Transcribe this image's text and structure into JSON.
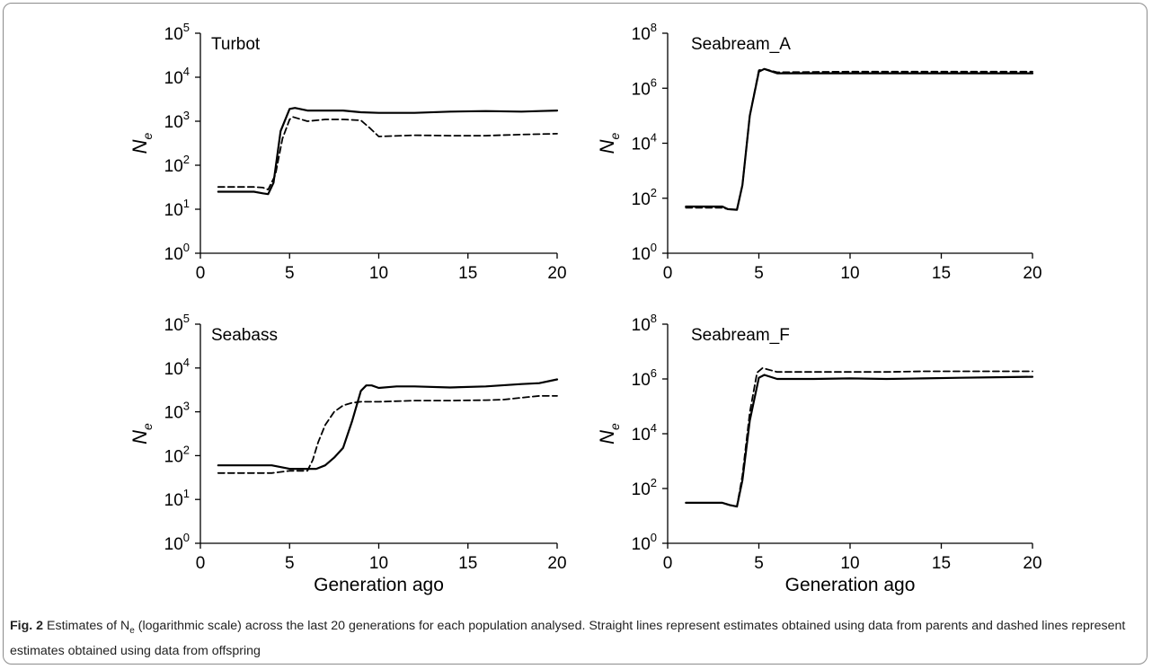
{
  "caption": {
    "label": "Fig. 2",
    "text_before": "Estimates of N",
    "text_sub": "e",
    "text_after": " (logarithmic scale) across the last 20 generations for each population analysed. Straight lines represent estimates obtained using data from parents and dashed lines represent estimates obtained using data from offspring"
  },
  "chart_data": [
    {
      "type": "line",
      "title": "Turbot",
      "xlabel": "",
      "ylabel": "Ne",
      "xlim": [
        0,
        20
      ],
      "xticks": [
        0,
        5,
        10,
        15,
        20
      ],
      "ylim": [
        1,
        100000
      ],
      "yscale": "log",
      "yticks_exponents": [
        0,
        1,
        2,
        3,
        4,
        5
      ],
      "grid": false,
      "series": [
        {
          "label": "parents",
          "style": "solid",
          "color": "#000000",
          "x": [
            1,
            2,
            3,
            3.5,
            3.8,
            4.1,
            4.5,
            5,
            5.3,
            6,
            7,
            8,
            9,
            10,
            12,
            14,
            16,
            18,
            19,
            20
          ],
          "y": [
            25,
            25,
            25,
            23,
            22,
            40,
            600,
            1900,
            2000,
            1750,
            1750,
            1750,
            1600,
            1550,
            1550,
            1650,
            1700,
            1650,
            1700,
            1750
          ]
        },
        {
          "label": "offspring",
          "style": "dashed",
          "color": "#000000",
          "x": [
            1,
            2,
            3,
            3.5,
            3.8,
            4.2,
            4.6,
            5,
            5.2,
            6,
            7,
            8,
            9,
            9.5,
            10,
            12,
            14,
            16,
            18,
            20
          ],
          "y": [
            32,
            32,
            32,
            31,
            28,
            60,
            400,
            1100,
            1250,
            1000,
            1100,
            1100,
            1050,
            700,
            450,
            480,
            470,
            470,
            500,
            520
          ]
        }
      ]
    },
    {
      "type": "line",
      "title": "Seabream_A",
      "xlabel": "",
      "ylabel": "Ne",
      "xlim": [
        0,
        20
      ],
      "xticks": [
        0,
        5,
        10,
        15,
        20
      ],
      "ylim": [
        1,
        100000000
      ],
      "yscale": "log",
      "yticks_exponents": [
        0,
        2,
        4,
        6,
        8
      ],
      "grid": false,
      "series": [
        {
          "label": "parents",
          "style": "solid",
          "color": "#000000",
          "x": [
            1,
            2,
            3,
            3.3,
            3.8,
            4.1,
            4.5,
            5,
            5.3,
            6,
            8,
            10,
            15,
            20
          ],
          "y": [
            50,
            50,
            50,
            40,
            38,
            300,
            100000,
            4000000,
            5000000,
            3500000,
            3500000,
            3500000,
            3500000,
            3500000
          ]
        },
        {
          "label": "offspring",
          "style": "dashed",
          "color": "#000000",
          "x": [
            1,
            2,
            3,
            3.3,
            3.8,
            4.1,
            4.5,
            5,
            5.3,
            6,
            8,
            10,
            15,
            20
          ],
          "y": [
            45,
            45,
            45,
            40,
            38,
            300,
            100000,
            4500000,
            5000000,
            3800000,
            3900000,
            4000000,
            4000000,
            4000000
          ]
        }
      ]
    },
    {
      "type": "line",
      "title": "Seabass",
      "xlabel": "Generation ago",
      "ylabel": "Ne",
      "xlim": [
        0,
        20
      ],
      "xticks": [
        0,
        5,
        10,
        15,
        20
      ],
      "ylim": [
        1,
        100000
      ],
      "yscale": "log",
      "yticks_exponents": [
        0,
        1,
        2,
        3,
        4,
        5
      ],
      "grid": false,
      "series": [
        {
          "label": "parents",
          "style": "solid",
          "color": "#000000",
          "x": [
            1,
            2,
            3,
            4,
            5,
            6,
            6.5,
            7,
            7.5,
            8,
            8.5,
            9,
            9.3,
            9.6,
            10,
            11,
            12,
            14,
            16,
            18,
            19,
            20
          ],
          "y": [
            60,
            60,
            60,
            60,
            50,
            50,
            50,
            60,
            90,
            150,
            600,
            3000,
            4000,
            4000,
            3500,
            3800,
            3800,
            3600,
            3800,
            4300,
            4500,
            5500
          ]
        },
        {
          "label": "offspring",
          "style": "dashed",
          "color": "#000000",
          "x": [
            1,
            2,
            3,
            4,
            5,
            5.5,
            6,
            6.3,
            6.6,
            7,
            7.5,
            8,
            8.5,
            9,
            10,
            12,
            14,
            16,
            17,
            18,
            19,
            20
          ],
          "y": [
            40,
            40,
            40,
            40,
            45,
            45,
            45,
            80,
            200,
            500,
            1000,
            1400,
            1600,
            1700,
            1700,
            1800,
            1800,
            1850,
            1900,
            2100,
            2300,
            2300
          ]
        }
      ]
    },
    {
      "type": "line",
      "title": "Seabream_F",
      "xlabel": "Generation ago",
      "ylabel": "Ne",
      "xlim": [
        0,
        20
      ],
      "xticks": [
        0,
        5,
        10,
        15,
        20
      ],
      "ylim": [
        1,
        100000000
      ],
      "yscale": "log",
      "yticks_exponents": [
        0,
        2,
        4,
        6,
        8
      ],
      "grid": false,
      "series": [
        {
          "label": "parents",
          "style": "solid",
          "color": "#000000",
          "x": [
            1,
            2,
            3,
            3.4,
            3.8,
            4.1,
            4.5,
            5,
            5.3,
            6,
            8,
            10,
            12,
            14,
            16,
            18,
            20
          ],
          "y": [
            30,
            30,
            30,
            25,
            22,
            200,
            30000,
            1100000,
            1400000,
            1000000,
            1000000,
            1050000,
            1000000,
            1050000,
            1100000,
            1150000,
            1200000
          ]
        },
        {
          "label": "offspring",
          "style": "dashed",
          "color": "#000000",
          "x": [
            1,
            2,
            3,
            3.4,
            3.8,
            4.1,
            4.5,
            4.9,
            5.2,
            6,
            8,
            10,
            12,
            14,
            16,
            18,
            20
          ],
          "y": [
            30,
            30,
            30,
            25,
            22,
            300,
            60000,
            1700000,
            2500000,
            1800000,
            1800000,
            1800000,
            1800000,
            1900000,
            1900000,
            1900000,
            1900000
          ]
        }
      ]
    }
  ]
}
